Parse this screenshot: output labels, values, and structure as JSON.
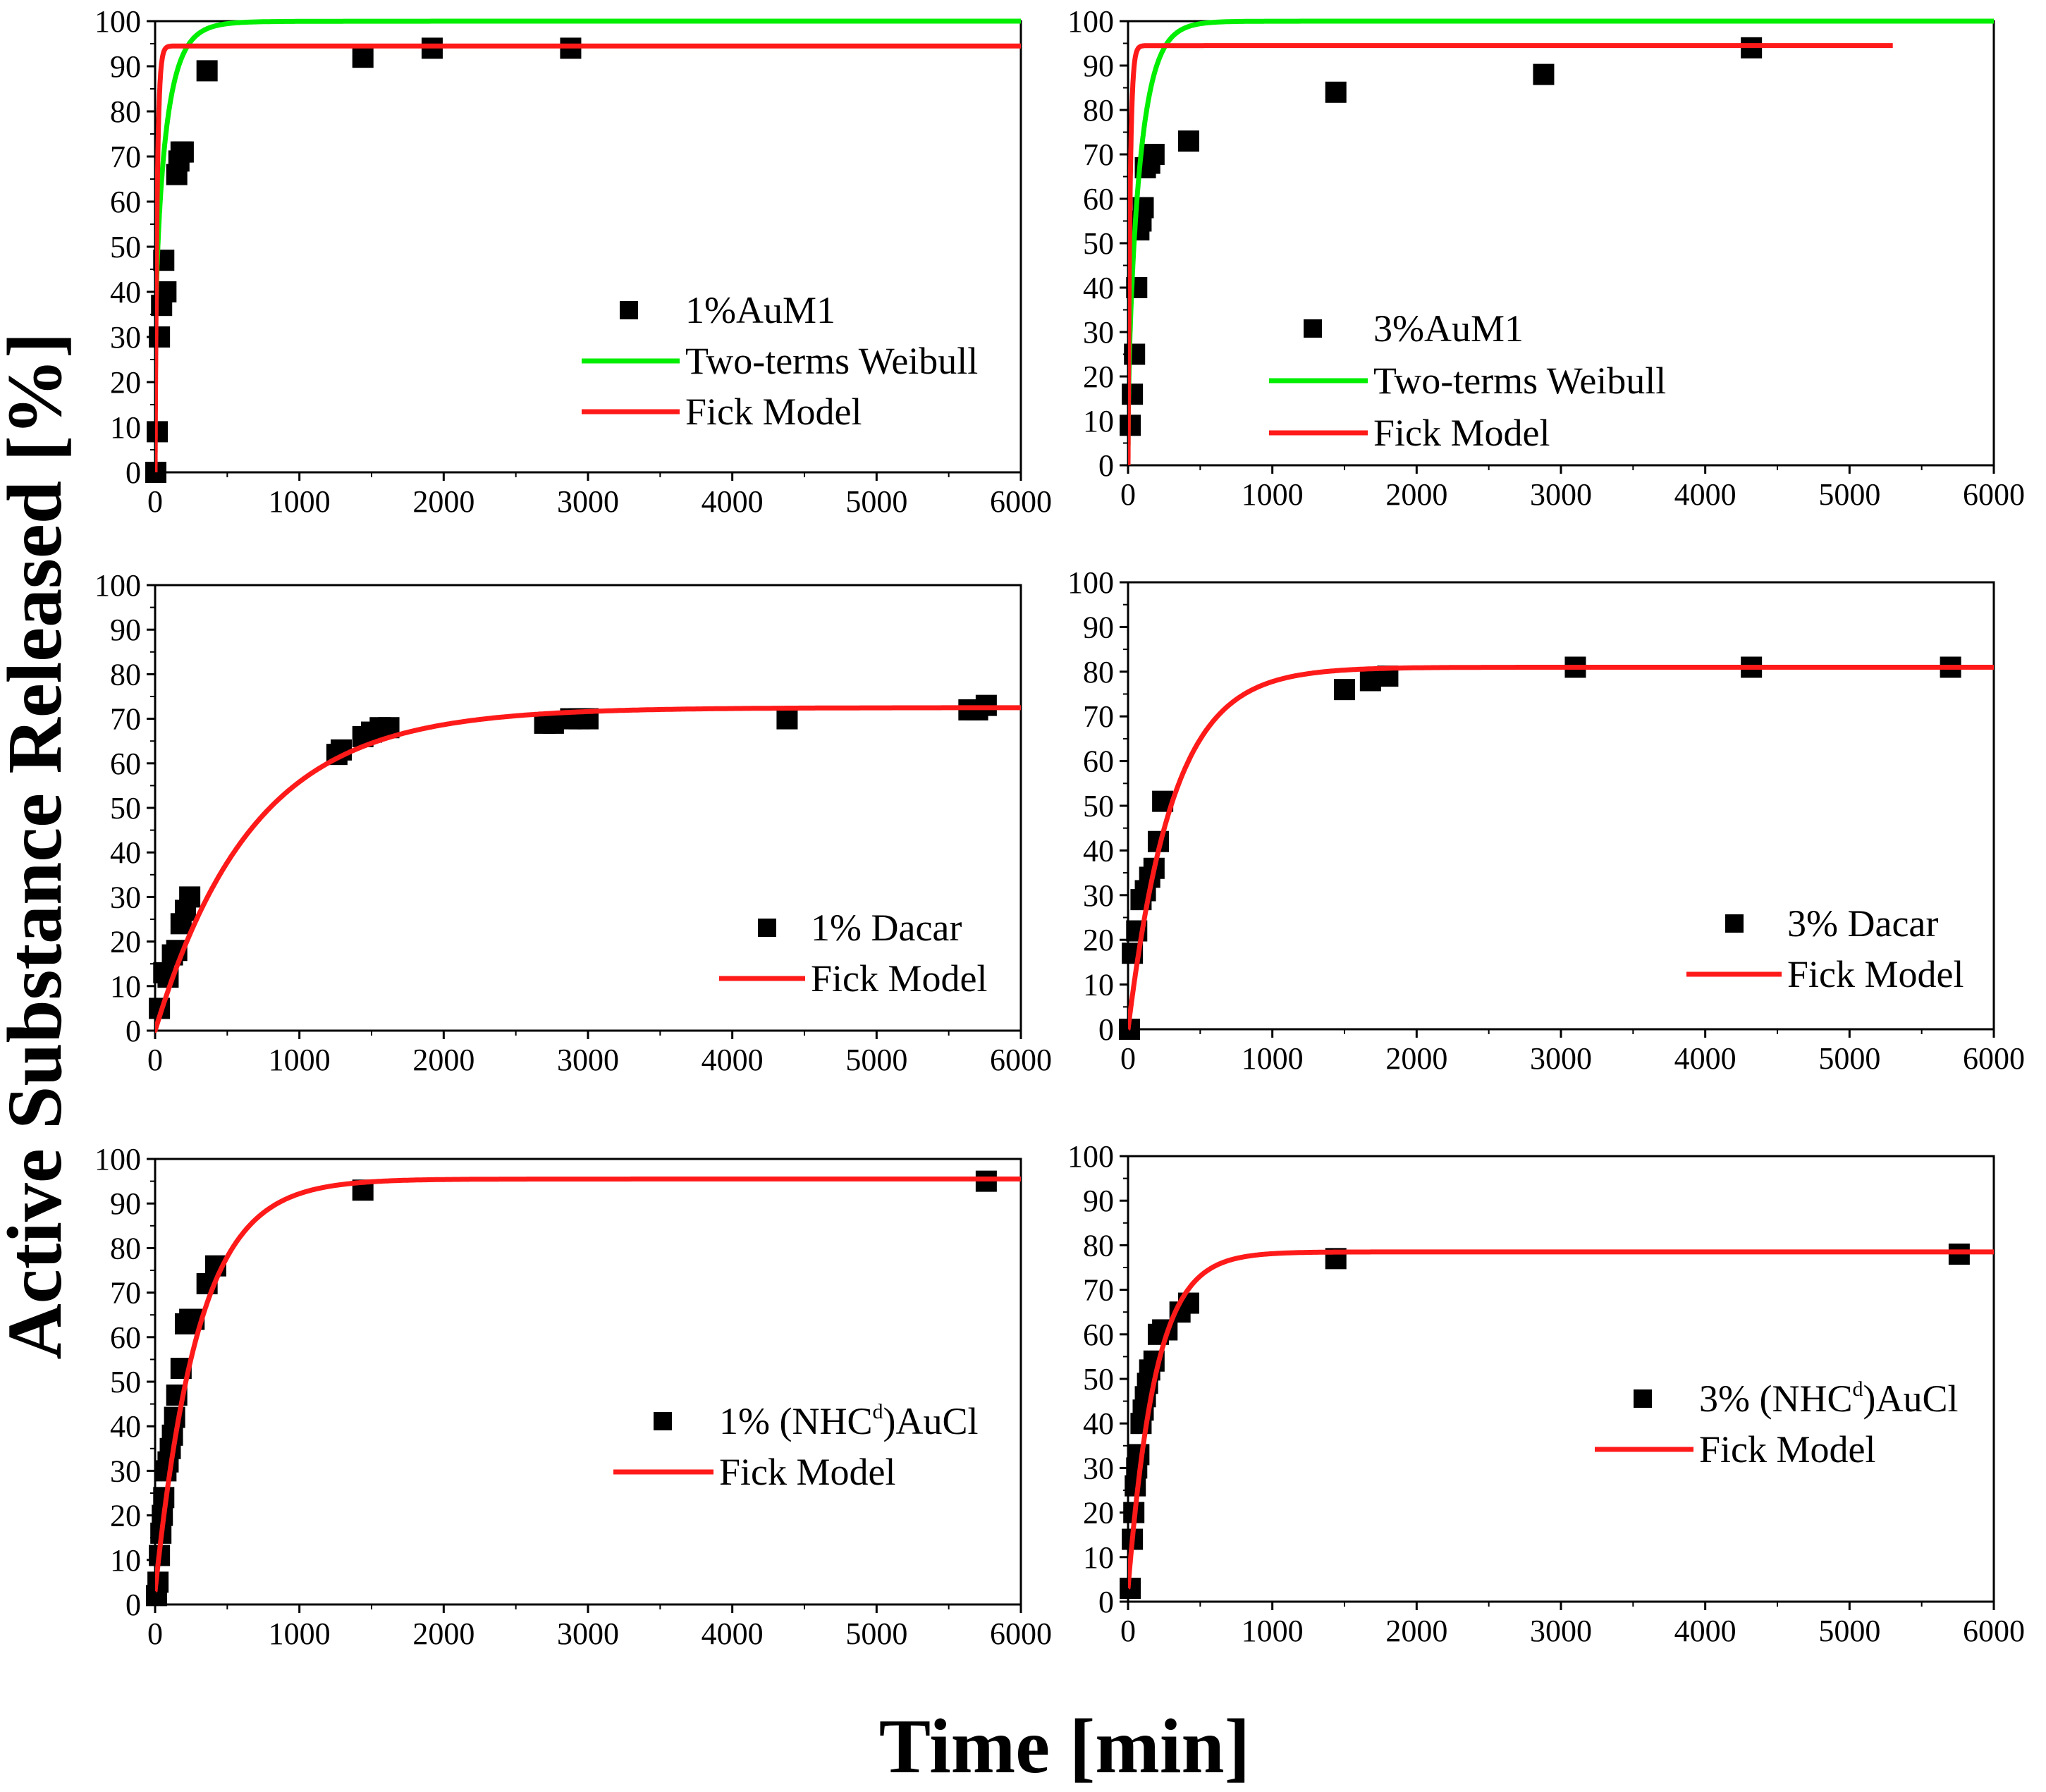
{
  "figure": {
    "xlabel": "Time [min]",
    "ylabel": "Active Substance Released [%]"
  },
  "chart_data": [
    {
      "type": "scatter",
      "panel": "top-left",
      "xlim": [
        0,
        6000
      ],
      "ylim": [
        0,
        100
      ],
      "xticks": [
        "0",
        "1000",
        "2000",
        "3000",
        "4000",
        "5000",
        "6000"
      ],
      "yticks": [
        "0",
        "10",
        "20",
        "30",
        "40",
        "50",
        "60",
        "70",
        "80",
        "90",
        "100"
      ],
      "legend_position": "center-right",
      "series": [
        {
          "name": "1%AuM1",
          "kind": "scatter",
          "color": "#000000",
          "x": [
            5,
            15,
            30,
            45,
            60,
            75,
            150,
            165,
            180,
            195,
            360,
            1440,
            1920,
            2880
          ],
          "y": [
            0,
            9,
            30,
            37,
            47,
            40,
            66,
            69,
            71,
            71,
            89,
            92,
            94,
            94
          ]
        },
        {
          "name": "Two-terms Weibull",
          "kind": "line",
          "color": "#00ee00",
          "model": "weibull2",
          "params": {
            "a": 55,
            "k1": 0.012,
            "b1": 0.9,
            "k2": 0.25,
            "b2": 0.35
          }
        },
        {
          "name": "Fick Model",
          "kind": "line",
          "color": "#ff1a1a",
          "model": "fick",
          "params": {
            "m": 94.5,
            "tau": 14
          }
        }
      ]
    },
    {
      "type": "scatter",
      "panel": "top-right",
      "xlim": [
        0,
        6000
      ],
      "ylim": [
        0,
        100
      ],
      "xticks": [
        "0",
        "1000",
        "2000",
        "3000",
        "4000",
        "5000",
        "6000"
      ],
      "yticks": [
        "0",
        "10",
        "20",
        "30",
        "40",
        "50",
        "60",
        "70",
        "80",
        "90",
        "100"
      ],
      "legend_position": "center",
      "series": [
        {
          "name": "3%AuM1",
          "kind": "scatter",
          "color": "#000000",
          "x": [
            15,
            30,
            45,
            60,
            75,
            90,
            105,
            120,
            150,
            180,
            420,
            1440,
            2880,
            4320
          ],
          "y": [
            9,
            16,
            25,
            40,
            53,
            55,
            58,
            67,
            68,
            70,
            73,
            84,
            88,
            94
          ]
        },
        {
          "name": "Two-terms Weibull",
          "kind": "line",
          "color": "#00ee00",
          "model": "weibull2",
          "params": {
            "a": 65,
            "k1": 0.01,
            "b1": 1.0,
            "k2": 0.06,
            "b2": 0.5
          }
        },
        {
          "name": "Fick Model",
          "kind": "line",
          "color": "#ff1a1a",
          "model": "fick",
          "params": {
            "m": 94.5,
            "tau": 14
          },
          "xmax": 5300
        }
      ]
    },
    {
      "type": "scatter",
      "panel": "middle-left",
      "xlim": [
        0,
        6000
      ],
      "ylim": [
        0,
        100
      ],
      "xticks": [
        "0",
        "1000",
        "2000",
        "3000",
        "4000",
        "5000",
        "6000"
      ],
      "yticks": [
        "0",
        "10",
        "20",
        "30",
        "40",
        "50",
        "60",
        "70",
        "80",
        "90",
        "100"
      ],
      "legend_position": "bottom-right",
      "series": [
        {
          "name": "1% Dacar",
          "kind": "scatter",
          "color": "#000000",
          "x": [
            30,
            60,
            90,
            120,
            150,
            180,
            210,
            240,
            1260,
            1290,
            1440,
            1500,
            1560,
            1620,
            2700,
            2760,
            2880,
            2940,
            3000,
            4380,
            5640,
            5700,
            5760
          ],
          "y": [
            5,
            13,
            12,
            17,
            18,
            24,
            27,
            30,
            62,
            63,
            66,
            67,
            68,
            68,
            69,
            69,
            70,
            70,
            70,
            70,
            72,
            72,
            73
          ]
        },
        {
          "name": "Fick Model",
          "kind": "line",
          "color": "#ff1a1a",
          "model": "fick",
          "params": {
            "m": 72.5,
            "tau": 680
          }
        }
      ]
    },
    {
      "type": "scatter",
      "panel": "middle-right",
      "xlim": [
        0,
        6000
      ],
      "ylim": [
        0,
        100
      ],
      "xticks": [
        "0",
        "1000",
        "2000",
        "3000",
        "4000",
        "5000",
        "6000"
      ],
      "yticks": [
        "0",
        "10",
        "20",
        "30",
        "40",
        "50",
        "60",
        "70",
        "80",
        "90",
        "100"
      ],
      "legend_position": "bottom-right",
      "series": [
        {
          "name": "3% Dacar",
          "kind": "scatter",
          "color": "#000000",
          "x": [
            10,
            30,
            60,
            90,
            120,
            150,
            180,
            210,
            240,
            1500,
            1680,
            1800,
            3100,
            4320,
            5700
          ],
          "y": [
            0,
            17,
            22,
            29,
            31,
            34,
            36,
            42,
            51,
            76,
            78,
            79,
            81,
            81,
            81
          ]
        },
        {
          "name": "Fick Model",
          "kind": "line",
          "color": "#ff1a1a",
          "model": "fick",
          "params": {
            "m": 81,
            "tau": 310
          }
        }
      ]
    },
    {
      "type": "scatter",
      "panel": "bottom-left",
      "xlim": [
        0,
        6000
      ],
      "ylim": [
        0,
        100
      ],
      "xticks": [
        "0",
        "1000",
        "2000",
        "3000",
        "4000",
        "5000",
        "6000"
      ],
      "yticks": [
        "0",
        "10",
        "20",
        "30",
        "40",
        "50",
        "60",
        "70",
        "80",
        "90",
        "100"
      ],
      "legend_position": "center-right",
      "series": [
        {
          "name": "1% (NHC",
          "sup": "d",
          "name_suffix": ")AuCl",
          "kind": "scatter",
          "color": "#000000",
          "x": [
            10,
            20,
            30,
            40,
            50,
            60,
            75,
            90,
            105,
            120,
            135,
            150,
            180,
            210,
            240,
            270,
            360,
            420,
            1440,
            5760
          ],
          "y": [
            2,
            5,
            11,
            16,
            20,
            24,
            30,
            32,
            35,
            38,
            42,
            47,
            53,
            63,
            64,
            64,
            72,
            76,
            93,
            95
          ]
        },
        {
          "name": "Fick Model",
          "kind": "line",
          "color": "#ff1a1a",
          "model": "fick",
          "params": {
            "m": 95.5,
            "tau": 300
          },
          "y0": 3
        }
      ]
    },
    {
      "type": "scatter",
      "panel": "bottom-right",
      "xlim": [
        0,
        6000
      ],
      "ylim": [
        0,
        100
      ],
      "xticks": [
        "0",
        "1000",
        "2000",
        "3000",
        "4000",
        "5000",
        "6000"
      ],
      "yticks": [
        "0",
        "10",
        "20",
        "30",
        "40",
        "50",
        "60",
        "70",
        "80",
        "90",
        "100"
      ],
      "legend_position": "center-right",
      "series": [
        {
          "name": "3% (NHC",
          "sup": "d",
          "name_suffix": ")AuCl",
          "kind": "scatter",
          "color": "#000000",
          "x": [
            15,
            30,
            40,
            50,
            60,
            75,
            90,
            105,
            120,
            135,
            150,
            180,
            210,
            240,
            270,
            360,
            420,
            1440,
            5760
          ],
          "y": [
            3,
            14,
            20,
            26,
            30,
            33,
            40,
            43,
            46,
            49,
            52,
            54,
            60,
            61,
            61,
            65,
            67,
            77,
            78
          ]
        },
        {
          "name": "Fick Model",
          "kind": "line",
          "color": "#ff1a1a",
          "model": "fick",
          "params": {
            "m": 78.5,
            "tau": 190
          },
          "y0": 3
        }
      ]
    }
  ]
}
